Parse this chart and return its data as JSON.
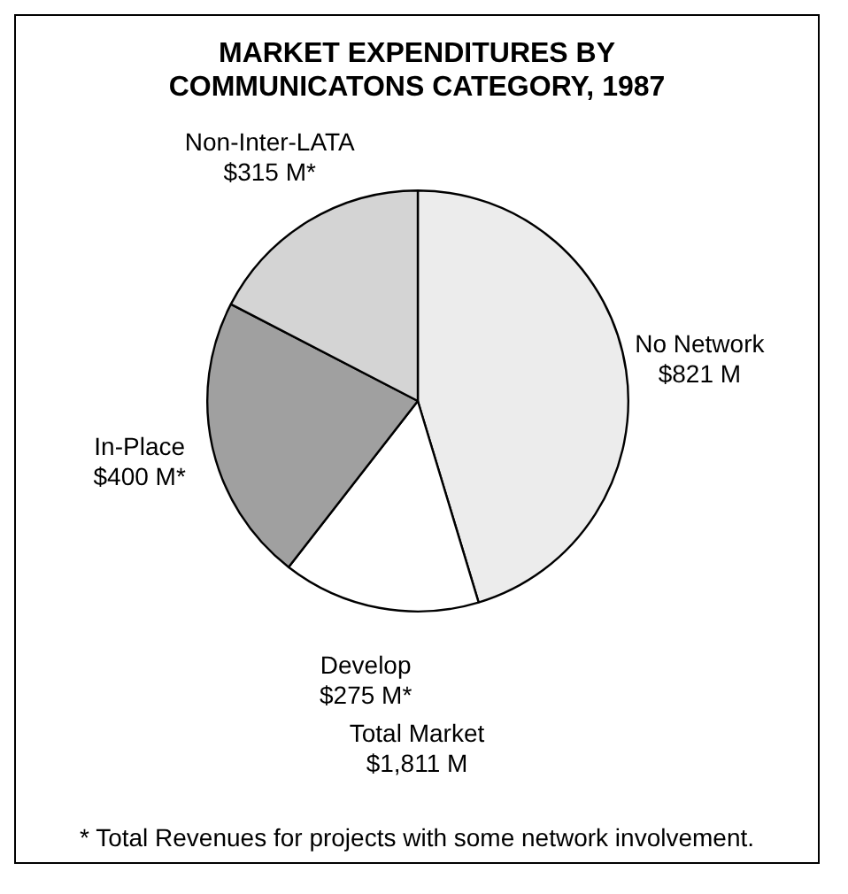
{
  "chart_data": {
    "type": "pie",
    "title": "MARKET EXPENDITURES BY COMMUNICATONS CATEGORY, 1987",
    "categories": [
      "No Network",
      "Develop",
      "In-Place",
      "Non-Inter-LATA"
    ],
    "values": [
      821,
      275,
      400,
      315
    ],
    "value_labels": [
      "$821 M",
      "$275 M*",
      "$400 M*",
      "$315 M*"
    ],
    "colors": [
      "#ececec",
      "#ffffff",
      "#a0a0a0",
      "#d4d4d4"
    ],
    "legend": false,
    "annotations": [
      "Total Market",
      "$1,811 M",
      "* Total Revenues for projects with some network involvement."
    ]
  }
}
